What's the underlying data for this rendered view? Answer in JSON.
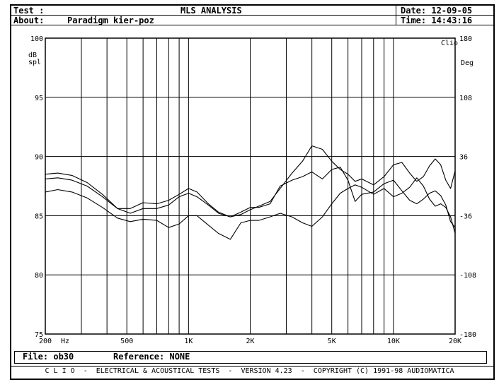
{
  "header": {
    "test_label": "Test :",
    "title": "MLS ANALYSIS",
    "date_label": "Date: 12-09-05",
    "about_label": "About:",
    "about_value": "Paradigm kier-poz",
    "time_label": "Time: 14:43:16"
  },
  "footer": {
    "file": "File: ob30",
    "reference": "Reference: NONE",
    "banner": "C L I O  -  ELECTRICAL & ACOUSTICAL TESTS  -  VERSION 4.23  -  COPYRIGHT (C) 1991-98 AUDIOMATICA"
  },
  "chart_data": {
    "type": "line",
    "title": "MLS ANALYSIS",
    "xscale": "log",
    "xlim": [
      200,
      20000
    ],
    "ylim": [
      75,
      100
    ],
    "y2lim": [
      -180,
      180
    ],
    "grid": true,
    "y_ticks": [
      100,
      95,
      90,
      85,
      80,
      75
    ],
    "y2_ticks": [
      180,
      108,
      36,
      -36,
      -108,
      -180
    ],
    "y2_tick_labels": [
      "180",
      "108",
      "36",
      "-36",
      "-108",
      "-180"
    ],
    "x_tick_labels": [
      {
        "value": 200,
        "label": "200"
      },
      {
        "value": 500,
        "label": "500"
      },
      {
        "value": 1000,
        "label": "1K"
      },
      {
        "value": 2000,
        "label": "2K"
      },
      {
        "value": 5000,
        "label": "5K"
      },
      {
        "value": 10000,
        "label": "10K"
      },
      {
        "value": 20000,
        "label": "20K"
      }
    ],
    "x_unit": "Hz",
    "ylabel": "dB\nspl",
    "y2label": "Deg",
    "corner_label": "Clio",
    "series": [
      {
        "x": [
          200,
          230,
          270,
          320,
          380,
          450,
          520,
          600,
          700,
          800,
          900,
          1000,
          1100,
          1250,
          1400,
          1600,
          1800,
          2000,
          2200,
          2500,
          2800,
          3200,
          3600,
          4000,
          4500,
          5000,
          5500,
          6000,
          6500,
          7000,
          8000,
          9000,
          10000,
          11000,
          12000,
          13000,
          14000,
          15000,
          16000,
          17000,
          18000,
          19000,
          20000
        ],
        "values": [
          88.5,
          88.6,
          88.4,
          87.8,
          86.8,
          85.6,
          85.2,
          85.6,
          85.6,
          85.9,
          86.6,
          86.9,
          86.6,
          85.9,
          85.2,
          84.9,
          85.1,
          85.5,
          85.8,
          86.2,
          87.3,
          88.6,
          89.6,
          90.9,
          90.6,
          89.6,
          88.9,
          88.5,
          87.9,
          88.1,
          87.6,
          88.3,
          89.3,
          89.5,
          88.6,
          87.9,
          88.3,
          89.2,
          89.8,
          89.3,
          88.0,
          87.3,
          88.8
        ]
      },
      {
        "x": [
          200,
          230,
          270,
          320,
          380,
          450,
          520,
          600,
          700,
          800,
          900,
          1000,
          1100,
          1250,
          1400,
          1600,
          1800,
          2000,
          2200,
          2500,
          2800,
          3200,
          3600,
          4000,
          4500,
          5000,
          5500,
          6000,
          6500,
          7000,
          8000,
          9000,
          10000,
          11000,
          12000,
          13000,
          14000,
          15000,
          16000,
          17000,
          18000,
          19000,
          20000
        ],
        "values": [
          88.1,
          88.2,
          88.0,
          87.5,
          86.6,
          85.6,
          85.6,
          86.1,
          86.0,
          86.3,
          86.8,
          87.3,
          87.0,
          86.0,
          85.3,
          84.9,
          85.3,
          85.7,
          85.7,
          86.0,
          87.5,
          88.0,
          88.3,
          88.7,
          88.1,
          88.9,
          89.1,
          88.0,
          86.2,
          86.8,
          87.0,
          87.7,
          88.0,
          87.1,
          86.3,
          86.0,
          86.4,
          86.9,
          87.1,
          86.7,
          85.9,
          84.5,
          84.0
        ]
      },
      {
        "x": [
          200,
          230,
          270,
          320,
          380,
          450,
          520,
          600,
          700,
          800,
          900,
          1000,
          1100,
          1250,
          1400,
          1600,
          1800,
          2000,
          2200,
          2500,
          2800,
          3200,
          3600,
          4000,
          4500,
          5000,
          5500,
          6000,
          6500,
          7000,
          8000,
          9000,
          10000,
          11000,
          12000,
          13000,
          14000,
          15000,
          16000,
          17000,
          18000,
          19000,
          20000
        ],
        "values": [
          87.0,
          87.2,
          87.0,
          86.5,
          85.7,
          84.8,
          84.5,
          84.7,
          84.6,
          84.0,
          84.3,
          85.0,
          85.0,
          84.2,
          83.5,
          83.0,
          84.4,
          84.6,
          84.6,
          84.9,
          85.2,
          84.9,
          84.4,
          84.1,
          84.9,
          86.0,
          86.9,
          87.3,
          87.6,
          87.4,
          86.8,
          87.3,
          86.6,
          86.9,
          87.4,
          88.2,
          87.5,
          86.4,
          85.8,
          86.0,
          85.7,
          84.9,
          83.5
        ]
      }
    ]
  }
}
